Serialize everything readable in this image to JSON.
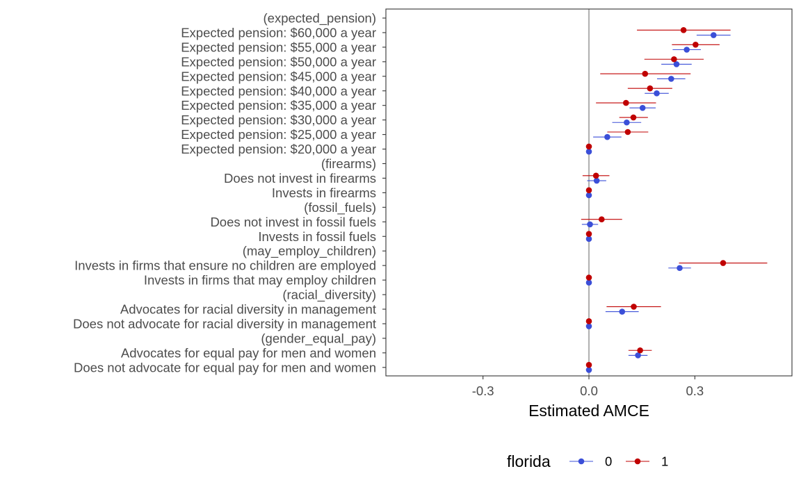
{
  "chart_data": {
    "type": "scatter",
    "subtype": "dot-and-whisker",
    "orientation": "horizontal",
    "xlabel": "Estimated AMCE",
    "xlim": [
      -0.575,
      0.575
    ],
    "xticks": [
      -0.3,
      0.0,
      0.3
    ],
    "xtick_labels": [
      "-0.3",
      "0.0",
      "0.3"
    ],
    "reference_line": 0,
    "grid": false,
    "legend": {
      "title": "florida",
      "position": "bottom"
    },
    "categories": [
      "(expected_pension)",
      "Expected pension: $60,000 a year",
      "Expected pension: $55,000 a year",
      "Expected pension: $50,000 a year",
      "Expected pension: $45,000 a year",
      "Expected pension: $40,000 a year",
      "Expected pension: $35,000 a year",
      "Expected pension: $30,000 a year",
      "Expected pension: $25,000 a year",
      "Expected pension: $20,000 a year",
      "(firearms)",
      "Does not invest in firearms",
      "Invests in firearms",
      "(fossil_fuels)",
      "Does not invest in fossil fuels",
      "Invests in fossil fuels",
      "(may_employ_children)",
      "Invests in firms that ensure no children are employed",
      "Invests in firms that may employ children",
      "(racial_diversity)",
      "Advocates for racial diversity in management",
      "Does not advocate for racial diversity in management",
      "(gender_equal_pay)",
      "Advocates for equal pay for men and women",
      "Does not advocate for equal pay for men and women"
    ],
    "series": [
      {
        "name": "0",
        "color": "#3B4FD8",
        "estimates": [
          null,
          0.353,
          0.277,
          0.248,
          0.233,
          0.192,
          0.152,
          0.107,
          0.052,
          0.0,
          null,
          0.022,
          0.0,
          null,
          0.003,
          0.0,
          null,
          0.257,
          0.0,
          null,
          0.094,
          0.0,
          null,
          0.139,
          0.0
        ],
        "lower": [
          null,
          0.305,
          0.237,
          0.205,
          0.193,
          0.158,
          0.115,
          0.066,
          0.012,
          0.0,
          null,
          -0.005,
          0.0,
          null,
          -0.02,
          0.0,
          null,
          0.225,
          0.0,
          null,
          0.047,
          0.0,
          null,
          0.112,
          0.0
        ],
        "upper": [
          null,
          0.401,
          0.317,
          0.291,
          0.273,
          0.226,
          0.189,
          0.148,
          0.092,
          0.0,
          null,
          0.049,
          0.0,
          null,
          0.026,
          0.0,
          null,
          0.289,
          0.0,
          null,
          0.141,
          0.0,
          null,
          0.166,
          0.0
        ]
      },
      {
        "name": "1",
        "color": "#C00000",
        "estimates": [
          null,
          0.268,
          0.302,
          0.241,
          0.159,
          0.173,
          0.105,
          0.126,
          0.11,
          0.0,
          null,
          0.02,
          0.0,
          null,
          0.036,
          0.0,
          null,
          0.38,
          0.0,
          null,
          0.127,
          0.0,
          null,
          0.145,
          0.0
        ],
        "lower": [
          null,
          0.136,
          0.235,
          0.157,
          0.032,
          0.11,
          0.02,
          0.086,
          0.052,
          0.0,
          null,
          -0.018,
          0.0,
          null,
          -0.022,
          0.0,
          null,
          0.255,
          0.0,
          null,
          0.05,
          0.0,
          null,
          0.112,
          0.0
        ],
        "upper": [
          null,
          0.401,
          0.37,
          0.325,
          0.288,
          0.236,
          0.19,
          0.167,
          0.168,
          0.0,
          null,
          0.058,
          0.0,
          null,
          0.094,
          0.0,
          null,
          0.505,
          0.0,
          null,
          0.204,
          0.0,
          null,
          0.178,
          0.0
        ]
      }
    ]
  }
}
